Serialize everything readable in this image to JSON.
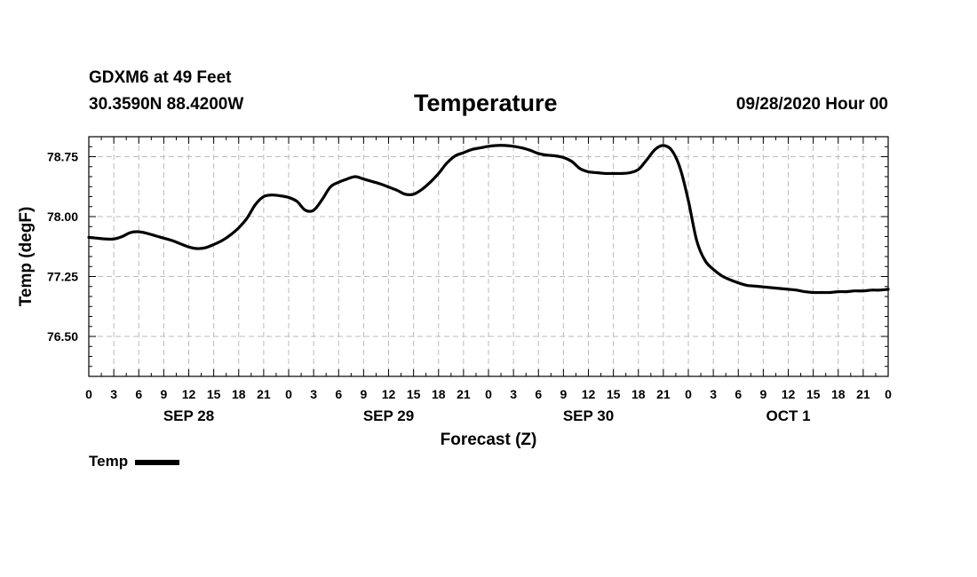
{
  "header": {
    "station": "GDXM6 at 49 Feet",
    "coords": "30.3590N 88.4200W",
    "title": "Temperature",
    "datetime": "09/28/2020 Hour 00"
  },
  "legend": {
    "label": "Temp"
  },
  "chart_data": {
    "type": "line",
    "title": "Temperature",
    "xlabel": "Forecast (Z)",
    "ylabel": "Temp (degF)",
    "xlim": [
      0,
      96
    ],
    "ylim": [
      76.0,
      79.0
    ],
    "yticks": [
      76.5,
      77.25,
      78.0,
      78.75
    ],
    "ytick_labels": [
      "76.50",
      "77.25",
      "78.00",
      "78.75"
    ],
    "xticks": [
      0,
      3,
      6,
      9,
      12,
      15,
      18,
      21,
      24,
      27,
      30,
      33,
      36,
      39,
      42,
      45,
      48,
      51,
      54,
      57,
      60,
      63,
      66,
      69,
      72,
      75,
      78,
      81,
      84,
      87,
      90,
      93,
      96
    ],
    "xtick_labels": [
      "0",
      "3",
      "6",
      "9",
      "12",
      "15",
      "18",
      "21",
      "0",
      "3",
      "6",
      "9",
      "12",
      "15",
      "18",
      "21",
      "0",
      "3",
      "6",
      "9",
      "12",
      "15",
      "18",
      "21",
      "0",
      "3",
      "6",
      "9",
      "12",
      "15",
      "18",
      "21",
      "0"
    ],
    "day_labels": [
      {
        "x": 12,
        "label": "SEP 28"
      },
      {
        "x": 36,
        "label": "SEP 29"
      },
      {
        "x": 60,
        "label": "SEP 30"
      },
      {
        "x": 84,
        "label": "OCT 1"
      }
    ],
    "grid": true,
    "series": [
      {
        "name": "Temp",
        "x": [
          0,
          1,
          2,
          3,
          4,
          5,
          6,
          7,
          8,
          9,
          10,
          11,
          12,
          13,
          14,
          15,
          16,
          17,
          18,
          19,
          20,
          21,
          22,
          23,
          24,
          25,
          26,
          27,
          28,
          29,
          30,
          31,
          32,
          33,
          34,
          35,
          36,
          37,
          38,
          39,
          40,
          41,
          42,
          43,
          44,
          45,
          46,
          47,
          48,
          49,
          50,
          51,
          52,
          53,
          54,
          55,
          56,
          57,
          58,
          59,
          60,
          61,
          62,
          63,
          64,
          65,
          66,
          67,
          68,
          69,
          70,
          71,
          72,
          73,
          74,
          75,
          76,
          77,
          78,
          79,
          80,
          81,
          82,
          83,
          84,
          85,
          86,
          87,
          88,
          89,
          90,
          91,
          92,
          93,
          94,
          95,
          96
        ],
        "values": [
          77.74,
          77.73,
          77.72,
          77.72,
          77.75,
          77.8,
          77.81,
          77.79,
          77.76,
          77.73,
          77.7,
          77.66,
          77.62,
          77.6,
          77.61,
          77.65,
          77.7,
          77.77,
          77.86,
          77.98,
          78.15,
          78.25,
          78.27,
          78.26,
          78.24,
          78.19,
          78.08,
          78.08,
          78.21,
          78.37,
          78.43,
          78.47,
          78.5,
          78.47,
          78.44,
          78.41,
          78.37,
          78.33,
          78.28,
          78.28,
          78.34,
          78.43,
          78.54,
          78.67,
          78.76,
          78.8,
          78.84,
          78.86,
          78.88,
          78.89,
          78.89,
          78.88,
          78.86,
          78.83,
          78.79,
          78.77,
          78.76,
          78.74,
          78.69,
          78.6,
          78.56,
          78.55,
          78.54,
          78.54,
          78.54,
          78.55,
          78.59,
          78.71,
          78.84,
          78.89,
          78.83,
          78.61,
          78.2,
          77.7,
          77.45,
          77.34,
          77.26,
          77.21,
          77.17,
          77.14,
          77.13,
          77.12,
          77.11,
          77.1,
          77.09,
          77.08,
          77.06,
          77.05,
          77.05,
          77.05,
          77.06,
          77.06,
          77.07,
          77.07,
          77.08,
          77.08,
          77.09
        ],
        "color": "#000000"
      }
    ]
  }
}
